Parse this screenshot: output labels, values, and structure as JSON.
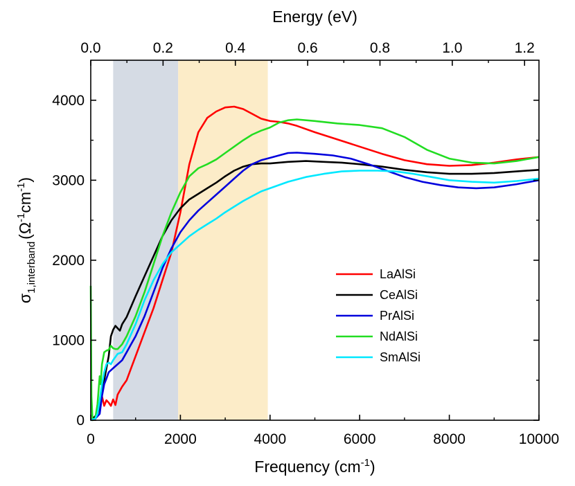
{
  "chart_data": {
    "type": "line",
    "xlabel": "Frequency (cm",
    "xlabel_sup": "-1",
    "xlabel_end": ")",
    "top_xlabel": "Energy (eV)",
    "ylabel_sigma": "σ",
    "ylabel_sub": "1,interband",
    "ylabel_units": "(Ω",
    "ylabel_units_sup1": "-1",
    "ylabel_units_mid": "cm",
    "ylabel_units_sup2": "-1",
    "ylabel_units_end": ")",
    "xlim": [
      0,
      10000
    ],
    "ylim": [
      0,
      4500
    ],
    "x_ticks": [
      0,
      2000,
      4000,
      6000,
      8000,
      10000
    ],
    "x_tick_labels": [
      "0",
      "2000",
      "4000",
      "6000",
      "8000",
      "10000"
    ],
    "y_ticks": [
      0,
      1000,
      2000,
      3000,
      4000
    ],
    "y_tick_labels": [
      "0",
      "1000",
      "2000",
      "3000",
      "4000"
    ],
    "top_ticks_ev": [
      0.0,
      0.2,
      0.4,
      0.6,
      0.8,
      1.0,
      1.2
    ],
    "top_tick_labels": [
      "0.0",
      "0.2",
      "0.4",
      "0.6",
      "0.8",
      "1.0",
      "1.2"
    ],
    "ev_to_cm": 8065.54,
    "shaded_regions": [
      {
        "x0": 500,
        "x1": 1950,
        "color": "#d5dbe4"
      },
      {
        "x0": 1950,
        "x1": 3950,
        "color": "#fcecc8"
      }
    ],
    "legend_position": "center-right",
    "series": [
      {
        "name": "LaAlSi",
        "color": "#ff0000",
        "points": [
          [
            0,
            0
          ],
          [
            100,
            40
          ],
          [
            200,
            120
          ],
          [
            250,
            300
          ],
          [
            300,
            180
          ],
          [
            350,
            250
          ],
          [
            400,
            220
          ],
          [
            450,
            180
          ],
          [
            500,
            260
          ],
          [
            550,
            190
          ],
          [
            600,
            320
          ],
          [
            700,
            420
          ],
          [
            800,
            500
          ],
          [
            900,
            650
          ],
          [
            1000,
            800
          ],
          [
            1200,
            1100
          ],
          [
            1400,
            1400
          ],
          [
            1600,
            1750
          ],
          [
            1800,
            2100
          ],
          [
            2000,
            2600
          ],
          [
            2200,
            3200
          ],
          [
            2400,
            3600
          ],
          [
            2600,
            3780
          ],
          [
            2800,
            3860
          ],
          [
            3000,
            3910
          ],
          [
            3200,
            3920
          ],
          [
            3400,
            3890
          ],
          [
            3600,
            3830
          ],
          [
            3800,
            3770
          ],
          [
            4000,
            3740
          ],
          [
            4200,
            3730
          ],
          [
            4400,
            3710
          ],
          [
            4600,
            3680
          ],
          [
            5000,
            3600
          ],
          [
            5500,
            3510
          ],
          [
            6000,
            3420
          ],
          [
            6500,
            3330
          ],
          [
            7000,
            3250
          ],
          [
            7500,
            3200
          ],
          [
            8000,
            3180
          ],
          [
            8500,
            3190
          ],
          [
            9000,
            3220
          ],
          [
            9500,
            3260
          ],
          [
            10000,
            3290
          ]
        ]
      },
      {
        "name": "CeAlSi",
        "color": "#000000",
        "points": [
          [
            0,
            0
          ],
          [
            100,
            50
          ],
          [
            200,
            150
          ],
          [
            250,
            350
          ],
          [
            300,
            500
          ],
          [
            350,
            650
          ],
          [
            400,
            800
          ],
          [
            450,
            1050
          ],
          [
            500,
            1130
          ],
          [
            550,
            1180
          ],
          [
            600,
            1150
          ],
          [
            650,
            1120
          ],
          [
            700,
            1200
          ],
          [
            800,
            1290
          ],
          [
            1000,
            1550
          ],
          [
            1200,
            1800
          ],
          [
            1400,
            2050
          ],
          [
            1600,
            2300
          ],
          [
            1800,
            2500
          ],
          [
            2000,
            2650
          ],
          [
            2200,
            2760
          ],
          [
            2400,
            2830
          ],
          [
            2600,
            2900
          ],
          [
            2800,
            2970
          ],
          [
            3000,
            3050
          ],
          [
            3200,
            3120
          ],
          [
            3400,
            3170
          ],
          [
            3600,
            3200
          ],
          [
            3800,
            3210
          ],
          [
            4000,
            3210
          ],
          [
            4400,
            3230
          ],
          [
            4800,
            3240
          ],
          [
            5200,
            3230
          ],
          [
            5600,
            3220
          ],
          [
            6000,
            3200
          ],
          [
            6500,
            3170
          ],
          [
            7000,
            3130
          ],
          [
            7500,
            3100
          ],
          [
            8000,
            3080
          ],
          [
            8500,
            3080
          ],
          [
            9000,
            3090
          ],
          [
            9500,
            3110
          ],
          [
            10000,
            3130
          ]
        ]
      },
      {
        "name": "PrAlSi",
        "color": "#0000dd",
        "points": [
          [
            0,
            0
          ],
          [
            100,
            20
          ],
          [
            200,
            80
          ],
          [
            250,
            300
          ],
          [
            300,
            450
          ],
          [
            350,
            520
          ],
          [
            400,
            600
          ],
          [
            500,
            650
          ],
          [
            600,
            700
          ],
          [
            700,
            750
          ],
          [
            800,
            850
          ],
          [
            900,
            950
          ],
          [
            1000,
            1050
          ],
          [
            1200,
            1300
          ],
          [
            1400,
            1600
          ],
          [
            1600,
            1900
          ],
          [
            1800,
            2150
          ],
          [
            2000,
            2350
          ],
          [
            2200,
            2500
          ],
          [
            2400,
            2620
          ],
          [
            2600,
            2720
          ],
          [
            2800,
            2820
          ],
          [
            3000,
            2920
          ],
          [
            3200,
            3020
          ],
          [
            3400,
            3120
          ],
          [
            3600,
            3200
          ],
          [
            3800,
            3250
          ],
          [
            4000,
            3280
          ],
          [
            4200,
            3310
          ],
          [
            4400,
            3340
          ],
          [
            4600,
            3345
          ],
          [
            5000,
            3330
          ],
          [
            5400,
            3310
          ],
          [
            5800,
            3270
          ],
          [
            6200,
            3200
          ],
          [
            6600,
            3120
          ],
          [
            7000,
            3040
          ],
          [
            7400,
            2980
          ],
          [
            7800,
            2940
          ],
          [
            8200,
            2910
          ],
          [
            8600,
            2900
          ],
          [
            9000,
            2910
          ],
          [
            9500,
            2950
          ],
          [
            10000,
            3000
          ]
        ]
      },
      {
        "name": "NdAlSi",
        "color": "#22dd22",
        "points": [
          [
            0,
            1680
          ],
          [
            15,
            300
          ],
          [
            40,
            0
          ],
          [
            100,
            20
          ],
          [
            150,
            200
          ],
          [
            200,
            550
          ],
          [
            220,
            450
          ],
          [
            250,
            700
          ],
          [
            300,
            850
          ],
          [
            350,
            870
          ],
          [
            400,
            880
          ],
          [
            450,
            930
          ],
          [
            500,
            900
          ],
          [
            550,
            890
          ],
          [
            600,
            890
          ],
          [
            700,
            950
          ],
          [
            800,
            1050
          ],
          [
            1000,
            1300
          ],
          [
            1200,
            1600
          ],
          [
            1400,
            1950
          ],
          [
            1600,
            2300
          ],
          [
            1800,
            2600
          ],
          [
            2000,
            2850
          ],
          [
            2200,
            3050
          ],
          [
            2400,
            3150
          ],
          [
            2600,
            3200
          ],
          [
            2800,
            3260
          ],
          [
            3000,
            3340
          ],
          [
            3200,
            3420
          ],
          [
            3400,
            3500
          ],
          [
            3600,
            3570
          ],
          [
            3800,
            3620
          ],
          [
            4000,
            3660
          ],
          [
            4200,
            3720
          ],
          [
            4400,
            3750
          ],
          [
            4600,
            3760
          ],
          [
            5000,
            3740
          ],
          [
            5500,
            3710
          ],
          [
            6000,
            3690
          ],
          [
            6500,
            3650
          ],
          [
            7000,
            3540
          ],
          [
            7500,
            3380
          ],
          [
            8000,
            3270
          ],
          [
            8500,
            3220
          ],
          [
            9000,
            3210
          ],
          [
            9500,
            3240
          ],
          [
            10000,
            3290
          ]
        ]
      },
      {
        "name": "SmAlSi",
        "color": "#00e8ff",
        "points": [
          [
            0,
            0
          ],
          [
            100,
            20
          ],
          [
            150,
            80
          ],
          [
            200,
            250
          ],
          [
            250,
            450
          ],
          [
            300,
            600
          ],
          [
            350,
            700
          ],
          [
            400,
            720
          ],
          [
            450,
            700
          ],
          [
            500,
            750
          ],
          [
            600,
            830
          ],
          [
            700,
            850
          ],
          [
            800,
            950
          ],
          [
            1000,
            1200
          ],
          [
            1200,
            1500
          ],
          [
            1400,
            1750
          ],
          [
            1600,
            1950
          ],
          [
            1800,
            2100
          ],
          [
            2000,
            2200
          ],
          [
            2200,
            2300
          ],
          [
            2400,
            2380
          ],
          [
            2600,
            2450
          ],
          [
            2800,
            2520
          ],
          [
            3000,
            2600
          ],
          [
            3200,
            2670
          ],
          [
            3400,
            2740
          ],
          [
            3600,
            2800
          ],
          [
            3800,
            2860
          ],
          [
            4000,
            2900
          ],
          [
            4400,
            2980
          ],
          [
            4800,
            3040
          ],
          [
            5200,
            3080
          ],
          [
            5600,
            3110
          ],
          [
            6000,
            3120
          ],
          [
            6400,
            3120
          ],
          [
            6800,
            3110
          ],
          [
            7200,
            3080
          ],
          [
            7600,
            3040
          ],
          [
            8000,
            3000
          ],
          [
            8500,
            2980
          ],
          [
            9000,
            2970
          ],
          [
            9500,
            2990
          ],
          [
            10000,
            3020
          ]
        ]
      }
    ]
  }
}
